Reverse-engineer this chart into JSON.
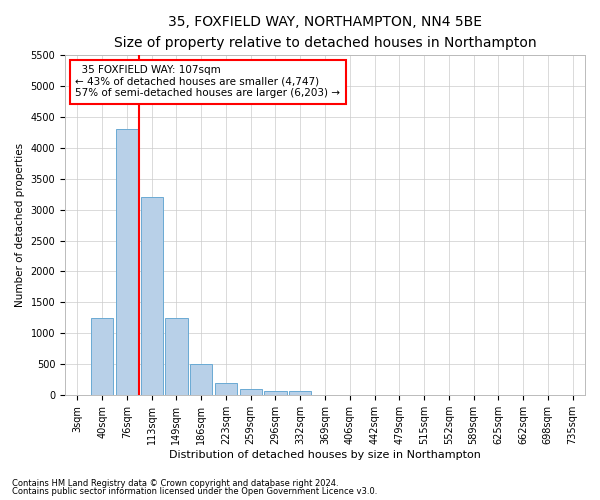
{
  "title1": "35, FOXFIELD WAY, NORTHAMPTON, NN4 5BE",
  "title2": "Size of property relative to detached houses in Northampton",
  "xlabel": "Distribution of detached houses by size in Northampton",
  "ylabel": "Number of detached properties",
  "footnote1": "Contains HM Land Registry data © Crown copyright and database right 2024.",
  "footnote2": "Contains public sector information licensed under the Open Government Licence v3.0.",
  "bin_labels": [
    "3sqm",
    "40sqm",
    "76sqm",
    "113sqm",
    "149sqm",
    "186sqm",
    "223sqm",
    "259sqm",
    "296sqm",
    "332sqm",
    "369sqm",
    "406sqm",
    "442sqm",
    "479sqm",
    "515sqm",
    "552sqm",
    "589sqm",
    "625sqm",
    "662sqm",
    "698sqm",
    "735sqm"
  ],
  "bar_values": [
    0,
    1250,
    4300,
    3200,
    1250,
    500,
    200,
    100,
    75,
    75,
    0,
    0,
    0,
    0,
    0,
    0,
    0,
    0,
    0,
    0,
    0
  ],
  "bar_color": "#b8d0e8",
  "bar_edgecolor": "#6aaad4",
  "red_line_x": 2.5,
  "red_line_label": "35 FOXFIELD WAY: 107sqm",
  "annotation_line1": "← 43% of detached houses are smaller (4,747)",
  "annotation_line2": "57% of semi-detached houses are larger (6,203) →",
  "annotation_box_color": "white",
  "annotation_box_edgecolor": "red",
  "ylim": [
    0,
    5500
  ],
  "yticks": [
    0,
    500,
    1000,
    1500,
    2000,
    2500,
    3000,
    3500,
    4000,
    4500,
    5000,
    5500
  ],
  "grid_color": "#cccccc",
  "background_color": "white",
  "title1_fontsize": 10,
  "title2_fontsize": 8.5,
  "xlabel_fontsize": 8,
  "ylabel_fontsize": 7.5,
  "tick_fontsize": 7,
  "footnote_fontsize": 6
}
